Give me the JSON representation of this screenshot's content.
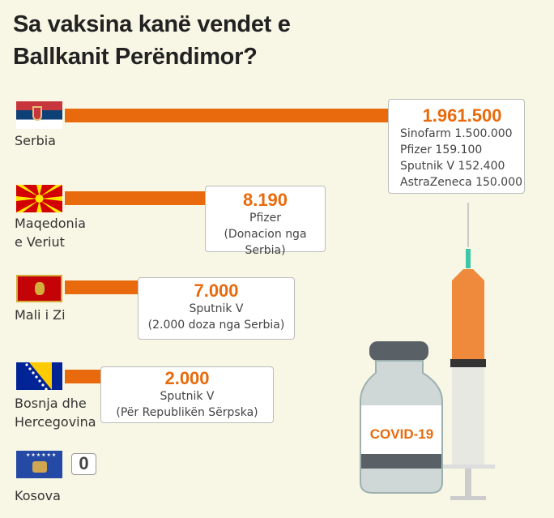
{
  "title": "Sa vaksina kanë vendet e Ballkanit Perëndimor?",
  "colors": {
    "bar": "#e96a0c",
    "background": "#f8f7e5"
  },
  "chart_data": {
    "type": "bar",
    "title": "Sa vaksina kanë vendet e Ballkanit Perëndimor?",
    "categories": [
      "Serbia",
      "Maqedonia e Veriut",
      "Mali i Zi",
      "Bosnja dhe Hercegovina",
      "Kosova"
    ],
    "values": [
      1961500,
      8190,
      7000,
      2000,
      0
    ],
    "labels": [
      "1.961.500",
      "8.190",
      "7.000",
      "2.000",
      "0"
    ],
    "details": [
      [
        "Sinofarm 1.500.000",
        "Pfizer 159.100",
        "Sputnik V 152.400",
        "AstraZeneca 150.000"
      ],
      [
        "Pfizer",
        "(Donacion nga Serbia)"
      ],
      [
        "Sputnik V",
        "(2.000 doza nga Serbia)"
      ],
      [
        "Sputnik V",
        "(Për Republikën Sërpska)"
      ],
      []
    ],
    "country_lines": [
      [
        "Serbia"
      ],
      [
        "Maqedonia",
        "e Veriut"
      ],
      [
        "Mali i Zi"
      ],
      [
        "Bosnja dhe",
        "Hercegovina"
      ],
      [
        "Kosova"
      ]
    ]
  },
  "illustration": {
    "vial_label": "COVID-19"
  }
}
